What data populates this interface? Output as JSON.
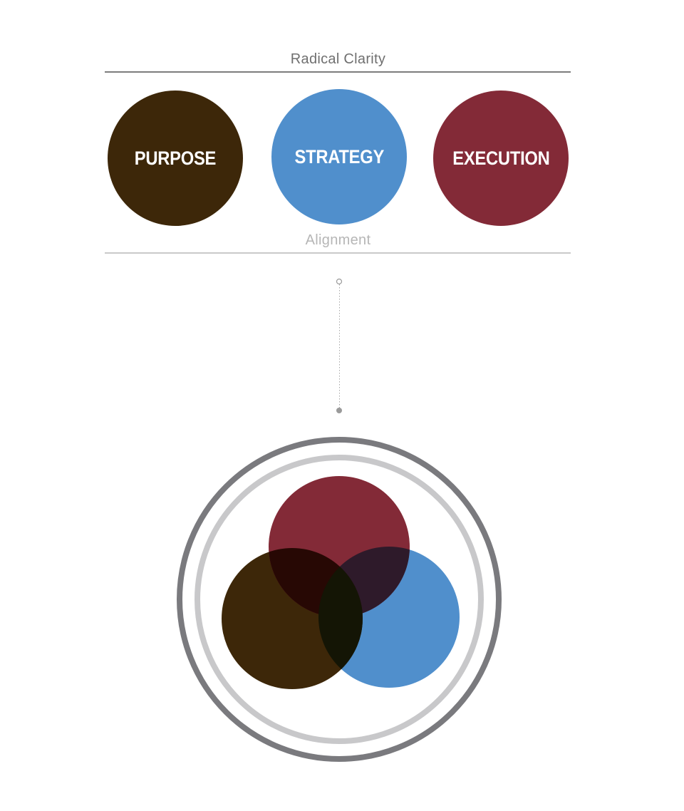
{
  "header": {
    "title": "Radical Clarity",
    "subtitle": "Alignment"
  },
  "pillars": [
    {
      "label": "PURPOSE",
      "color": "#3d2709"
    },
    {
      "label": "STRATEGY",
      "color": "#508fcc"
    },
    {
      "label": "EXECUTION",
      "color": "#832a37"
    }
  ],
  "venn": {
    "sets": [
      "PURPOSE",
      "STRATEGY",
      "EXECUTION"
    ],
    "colors": {
      "purpose": "#3d2709",
      "strategy": "#508fcc",
      "execution": "#832a37",
      "purpose_execution_overlap": "#270804",
      "strategy_execution_overlap": "#2e1a2a",
      "all_overlap": "#141505",
      "outer_ring": "#7a7a7e",
      "inner_ring": "#c8c8ca"
    }
  }
}
